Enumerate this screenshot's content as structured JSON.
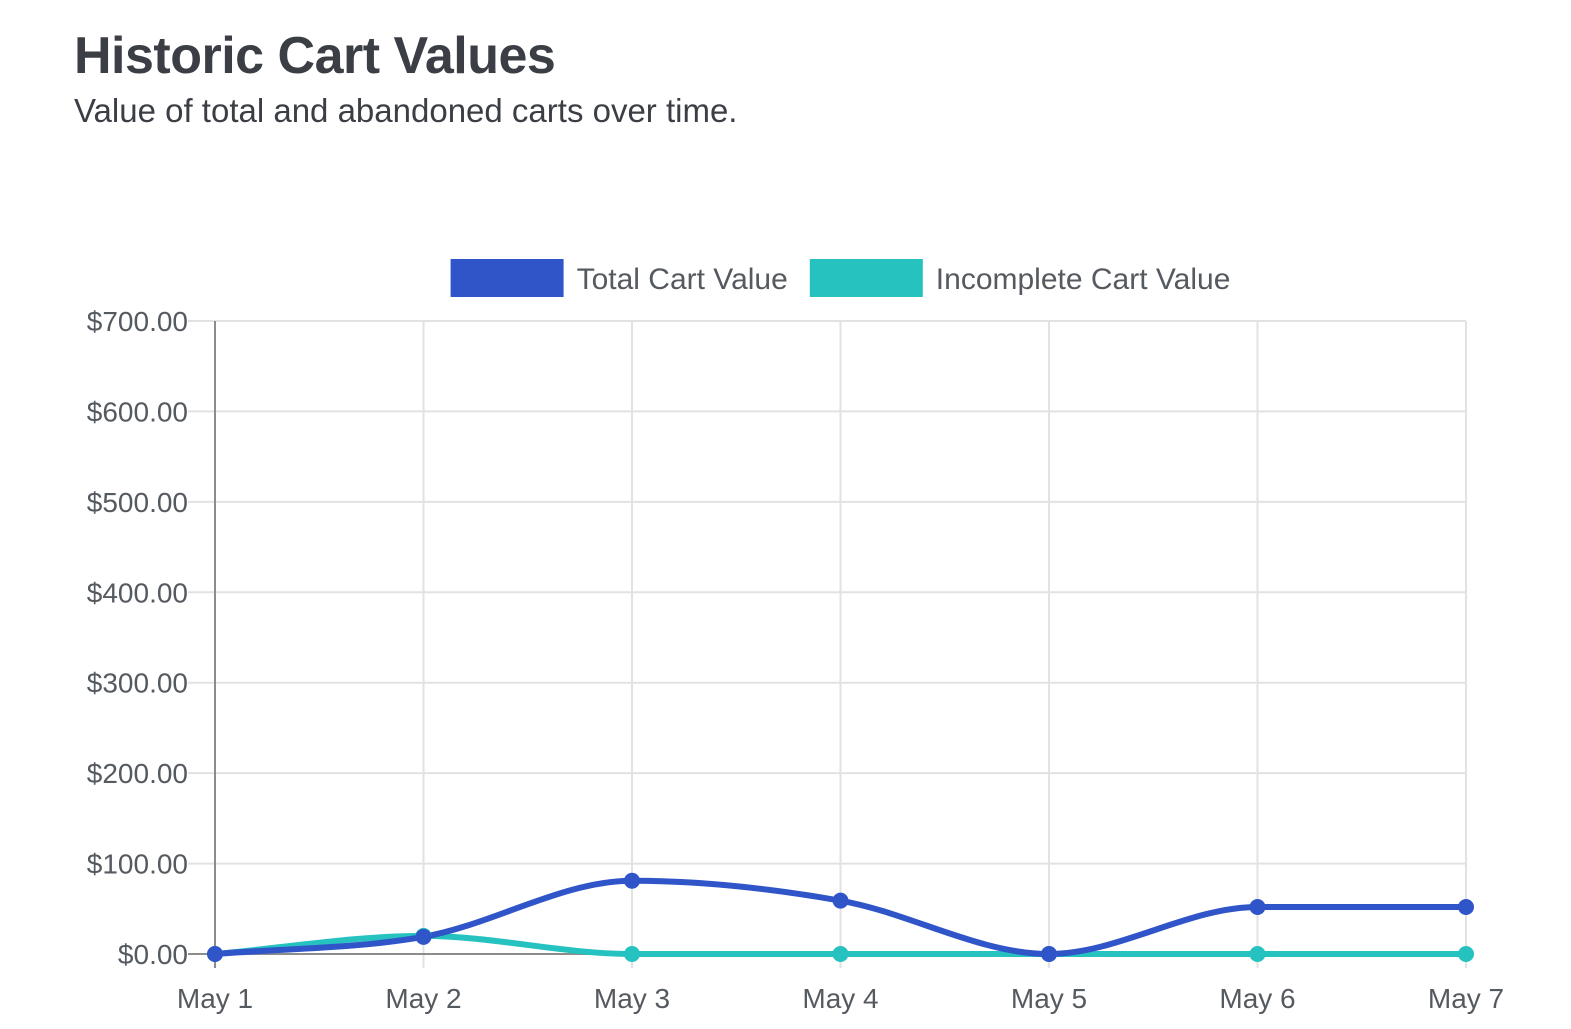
{
  "header": {
    "title": "Historic Cart Values",
    "subtitle": "Value of total and abandoned carts over time."
  },
  "chart_data": {
    "type": "line",
    "title": "Historic Cart Values",
    "subtitle": "Value of total and abandoned carts over time.",
    "categories": [
      "May 1",
      "May 2",
      "May 3",
      "May 4",
      "May 5",
      "May 6",
      "May 7"
    ],
    "series": [
      {
        "name": "Total Cart Value",
        "color": "#2f55c8",
        "values": [
          0,
          19,
          81,
          59,
          0,
          52,
          52
        ]
      },
      {
        "name": "Incomplete Cart Value",
        "color": "#26c2c0",
        "values": [
          0,
          20,
          0,
          0,
          0,
          0,
          0
        ]
      }
    ],
    "y_ticks": [
      "$0.00",
      "$100.00",
      "$200.00",
      "$300.00",
      "$400.00",
      "$500.00",
      "$600.00",
      "$700.00"
    ],
    "ylim": [
      0,
      700
    ],
    "xlabel": "",
    "ylabel": "",
    "grid": true,
    "legend_position": "top-center",
    "line_style": "smooth",
    "markers": true
  }
}
